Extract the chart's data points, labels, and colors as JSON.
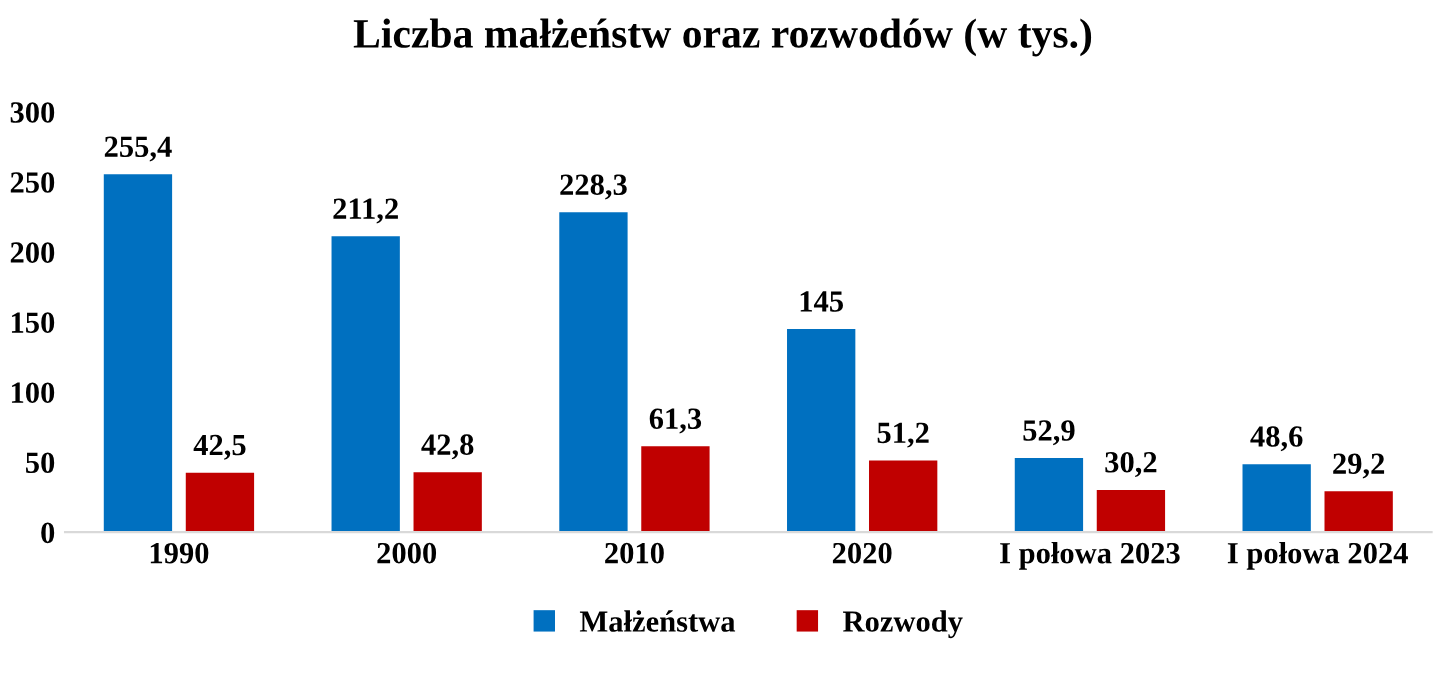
{
  "chart_data": {
    "type": "bar",
    "title": "Liczba małżeństw oraz rozwodów (w tys.)",
    "categories": [
      "1990",
      "2000",
      "2010",
      "2020",
      "I połowa 2023",
      "I połowa 2024"
    ],
    "series": [
      {
        "name": "Małżeństwa",
        "color": "#0070c0",
        "values": [
          255.4,
          211.2,
          228.3,
          145,
          52.9,
          48.6
        ],
        "value_labels": [
          "255,4",
          "211,2",
          "228,3",
          "145",
          "52,9",
          "48,6"
        ]
      },
      {
        "name": "Rozwody",
        "color": "#c00000",
        "values": [
          42.5,
          42.8,
          61.3,
          51.2,
          30.2,
          29.2
        ],
        "value_labels": [
          "42,5",
          "42,8",
          "61,3",
          "51,2",
          "30,2",
          "29,2"
        ]
      }
    ],
    "ylim": [
      0,
      300
    ],
    "yticks": [
      0,
      50,
      100,
      150,
      200,
      250,
      300
    ],
    "grid": false,
    "legend": "bottom"
  }
}
